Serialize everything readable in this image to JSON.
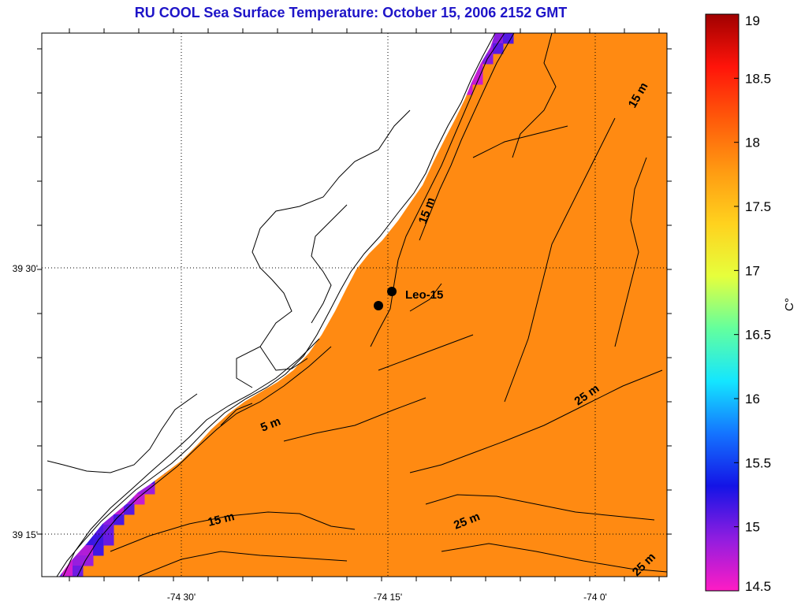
{
  "title": "RU COOL  Sea Surface Temperature:  October 15, 2006 2152 GMT",
  "colors": {
    "land": "#ffffff",
    "contour": "#000000",
    "title": "#1e14c8"
  },
  "axes": {
    "x_ticks": [
      {
        "label": "-74 30'"
      },
      {
        "label": "-74 15'"
      },
      {
        "label": "-74 0'"
      }
    ],
    "y_ticks": [
      {
        "label": "39 30'"
      },
      {
        "label": "39 15'"
      }
    ]
  },
  "colorbar": {
    "min": 14.5,
    "max": 19,
    "ticks": [
      "19",
      "18.5",
      "18",
      "17.5",
      "17",
      "16.5",
      "16",
      "15.5",
      "15",
      "14.5"
    ],
    "unit": "C°",
    "stops": [
      "#ff1cc4",
      "#8f1de0",
      "#1414e6",
      "#1474ff",
      "#14e6ff",
      "#63ff9e",
      "#e6ff3c",
      "#ffd21e",
      "#ff9b12",
      "#ff5a0a",
      "#ff140a",
      "#a00000"
    ]
  },
  "contour_labels": [
    {
      "text": "5 m"
    },
    {
      "text": "15 m"
    },
    {
      "text": "15 m"
    },
    {
      "text": "15 m"
    },
    {
      "text": "25 m"
    },
    {
      "text": "25 m"
    },
    {
      "text": "25 m"
    }
  ],
  "station": {
    "name": "Leo-15"
  }
}
